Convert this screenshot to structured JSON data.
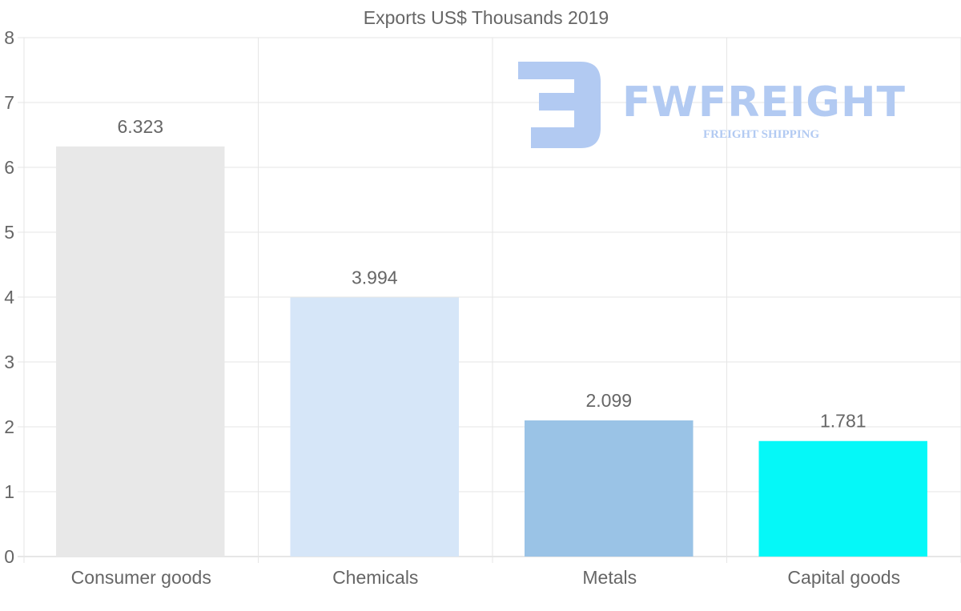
{
  "chart_data": {
    "type": "bar",
    "title": "Exports US$ Thousands 2019",
    "categories": [
      "Consumer goods",
      "Chemicals",
      "Metals",
      "Capital goods"
    ],
    "values": [
      6.323,
      3.994,
      2.099,
      1.781
    ],
    "value_labels": [
      "6.323",
      "3.994",
      "2.099",
      "1.781"
    ],
    "colors": [
      "#e8e8e8",
      "#d6e6f8",
      "#9ac3e6",
      "#05f8f8"
    ],
    "ylim": [
      0,
      8
    ],
    "yticks": [
      "0",
      "1",
      "2",
      "3",
      "4",
      "5",
      "6",
      "7",
      "8"
    ],
    "grid": true,
    "xlabel": "",
    "ylabel": ""
  },
  "watermark": {
    "name": "FWFREIGHT",
    "tagline": "FREIGHT SHIPPING"
  }
}
